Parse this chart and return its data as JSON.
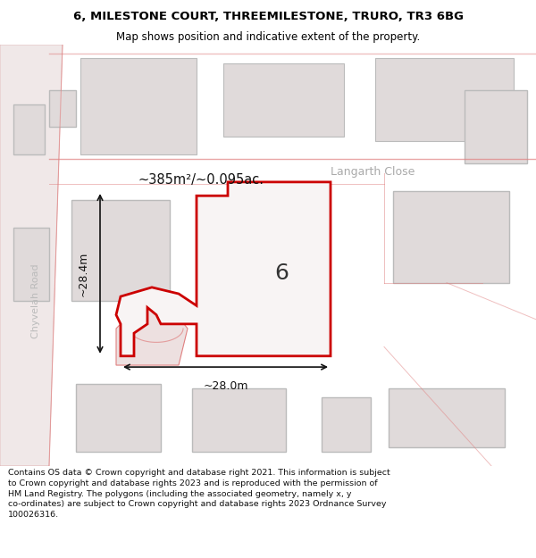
{
  "title": "6, MILESTONE COURT, THREEMILESTONE, TRURO, TR3 6BG",
  "subtitle": "Map shows position and indicative extent of the property.",
  "footer": "Contains OS data © Crown copyright and database right 2021. This information is subject to Crown copyright and database rights 2023 and is reproduced with the permission of HM Land Registry. The polygons (including the associated geometry, namely x, y co-ordinates) are subject to Crown copyright and database rights 2023 Ordnance Survey 100026316.",
  "bg_color": "#f5f0f0",
  "map_bg": "#f8f5f5",
  "building_fill": "#e0dada",
  "building_edge": "#bbbbbb",
  "road_color": "#e8d8d8",
  "subject_fill": "#f8f5f5",
  "subject_edge": "#cc0000",
  "dim_color": "#111111",
  "street_label_color": "#aaaaaa",
  "area_label": "~385m²/~0.095ac.",
  "number_label": "6",
  "dim_width": "~28.0m",
  "dim_height": "~28.4m",
  "street_name": "Langarth Close",
  "road_name": "Chyvelah Road"
}
